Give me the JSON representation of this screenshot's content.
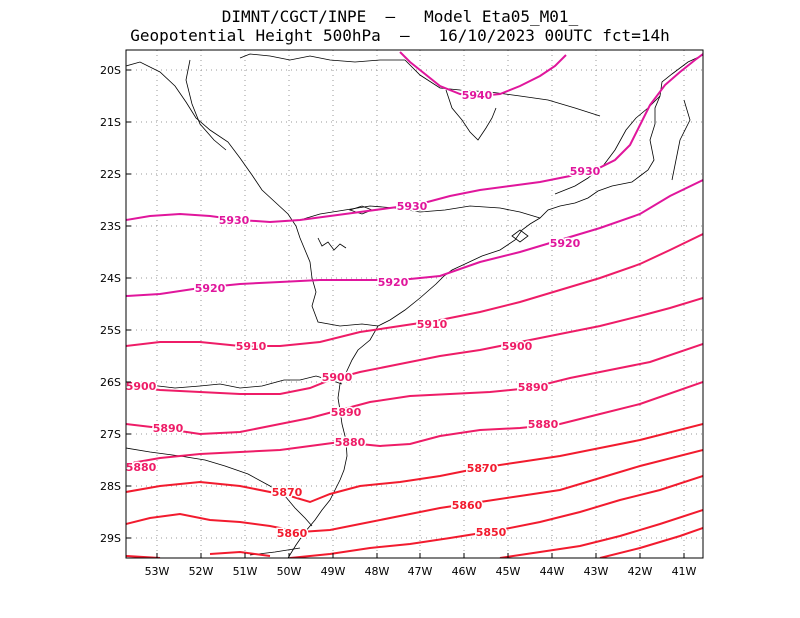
{
  "header": {
    "line1": "DIMNT/CGCT/INPE  –   Model Eta05_M01_",
    "line2": "Geopotential Height 500hPa  –   16/10/2023 00UTC fct=14h"
  },
  "colors": {
    "contour_high": "#e0169c",
    "contour_mid": "#ee1c67",
    "contour_low": "#f21b2e",
    "coast": "#000000",
    "grid": "#999999"
  },
  "axes": {
    "lat_labels": [
      "20S",
      "21S",
      "22S",
      "23S",
      "24S",
      "25S",
      "26S",
      "27S",
      "28S",
      "29S"
    ],
    "lon_labels": [
      "53W",
      "52W",
      "51W",
      "50W",
      "49W",
      "48W",
      "47W",
      "46W",
      "45W",
      "44W",
      "43W",
      "42W",
      "41W"
    ]
  },
  "contours": [
    {
      "label": "5940",
      "value": 5940
    },
    {
      "label": "5930",
      "value": 5930
    },
    {
      "label": "5920",
      "value": 5920
    },
    {
      "label": "5910",
      "value": 5910
    },
    {
      "label": "5900",
      "value": 5900
    },
    {
      "label": "5890",
      "value": 5890
    },
    {
      "label": "5880",
      "value": 5880
    },
    {
      "label": "5870",
      "value": 5870
    },
    {
      "label": "5860",
      "value": 5860
    },
    {
      "label": "5850",
      "value": 5850
    }
  ]
}
